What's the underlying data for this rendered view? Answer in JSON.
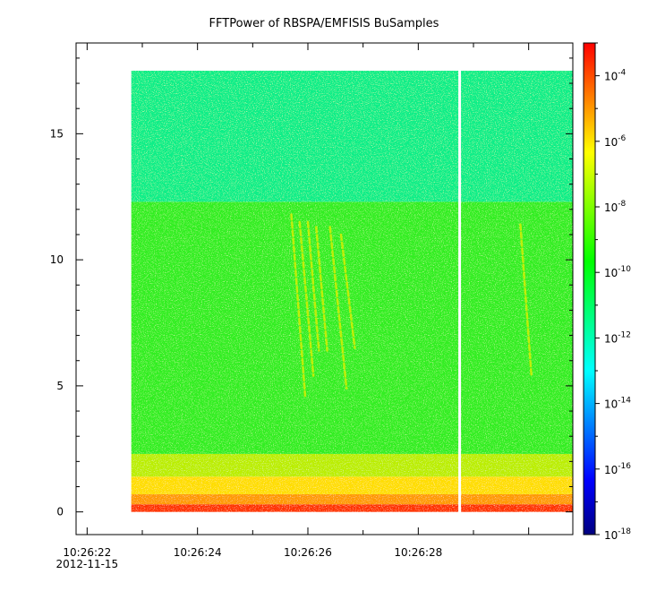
{
  "chart_data": {
    "type": "heatmap",
    "title": "FFTPower of RBSPA/EMFISIS  BuSamples",
    "xlabel": "",
    "ylabel": "",
    "x_ticks": [
      {
        "time": "10:26:22",
        "label": "10:26:22",
        "sublabel": "2012-11-15"
      },
      {
        "time": "10:26:24",
        "label": "10:26:24",
        "sublabel": ""
      },
      {
        "time": "10:26:26",
        "label": "10:26:26",
        "sublabel": ""
      },
      {
        "time": "10:26:28",
        "label": "10:26:28",
        "sublabel": ""
      }
    ],
    "x_range": [
      "10:26:21.8",
      "10:26:30.8"
    ],
    "data_time_range": [
      "10:26:22.8",
      "10:26:30.8"
    ],
    "data_gap_time": "10:26:28.75",
    "y_ticks": [
      0,
      5,
      10,
      15
    ],
    "ylim": [
      -0.9,
      18.6
    ],
    "data_y_range": [
      0,
      17.5
    ],
    "colorbar": {
      "scale": "log",
      "range": [
        1e-18,
        0.001
      ],
      "tick_values": [
        1e-18,
        1e-16,
        1e-14,
        1e-12,
        1e-10,
        1e-08,
        1e-06,
        0.0001
      ],
      "tick_labels": [
        {
          "base": "10",
          "exp": "-18"
        },
        {
          "base": "10",
          "exp": "-16"
        },
        {
          "base": "10",
          "exp": "-14"
        },
        {
          "base": "10",
          "exp": "-12"
        },
        {
          "base": "10",
          "exp": "-10"
        },
        {
          "base": "10",
          "exp": "-8"
        },
        {
          "base": "10",
          "exp": "-6"
        },
        {
          "base": "10",
          "exp": "-4"
        }
      ],
      "colors": [
        "#00007f",
        "#0000ff",
        "#007fff",
        "#00ffff",
        "#00ff7f",
        "#00ff00",
        "#7fff00",
        "#ffff00",
        "#ff7f00",
        "#ff0000"
      ]
    },
    "bands": [
      {
        "y_min": 0,
        "y_max": 0.3,
        "color": "#ff3000"
      },
      {
        "y_min": 0.3,
        "y_max": 0.7,
        "color": "#ff9900"
      },
      {
        "y_min": 0.7,
        "y_max": 1.4,
        "color": "#ffdd00"
      },
      {
        "y_min": 1.4,
        "y_max": 2.3,
        "color": "#bbee00"
      },
      {
        "y_min": 2.3,
        "y_max": 12.3,
        "color": "#33ee22"
      },
      {
        "y_min": 12.3,
        "y_max": 17.5,
        "color": "#11ee88"
      }
    ],
    "streaks": [
      {
        "x1": "10:26:25.70",
        "y1": 11.8,
        "x2": "10:26:25.95",
        "y2": 4.6
      },
      {
        "x1": "10:26:25.85",
        "y1": 11.5,
        "x2": "10:26:26.10",
        "y2": 5.4
      },
      {
        "x1": "10:26:26.00",
        "y1": 11.5,
        "x2": "10:26:26.20",
        "y2": 6.4
      },
      {
        "x1": "10:26:26.15",
        "y1": 11.3,
        "x2": "10:26:26.35",
        "y2": 6.4
      },
      {
        "x1": "10:26:26.40",
        "y1": 11.3,
        "x2": "10:26:26.70",
        "y2": 4.9
      },
      {
        "x1": "10:26:26.60",
        "y1": 11.0,
        "x2": "10:26:26.85",
        "y2": 6.5
      },
      {
        "x1": "10:26:29.85",
        "y1": 11.4,
        "x2": "10:26:30.05",
        "y2": 5.4
      }
    ]
  }
}
